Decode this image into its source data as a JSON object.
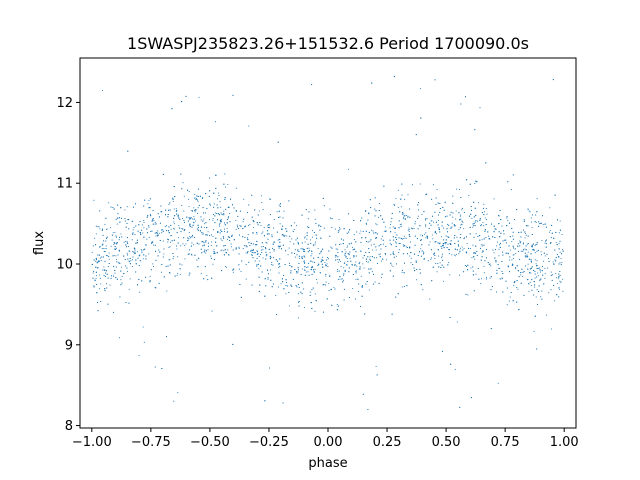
{
  "chart_data": {
    "type": "scatter",
    "title": "1SWASPJ235823.26+151532.6 Period 1700090.0s",
    "xlabel": "phase",
    "ylabel": "flux",
    "xlim": [
      -1.05,
      1.05
    ],
    "ylim": [
      7.97,
      12.55
    ],
    "xticks": [
      -1.0,
      -0.75,
      -0.5,
      -0.25,
      0.0,
      0.25,
      0.5,
      0.75,
      1.0
    ],
    "xtick_labels": [
      "−1.00",
      "−0.75",
      "−0.50",
      "−0.25",
      "0.00",
      "0.25",
      "0.50",
      "0.75",
      "1.00"
    ],
    "yticks": [
      8,
      9,
      10,
      11,
      12
    ],
    "ytick_labels": [
      "8",
      "9",
      "10",
      "11",
      "12"
    ],
    "grid": false,
    "marker_color": "#1f77b4",
    "series": [
      {
        "x_range": [
          -1.0,
          1.0
        ],
        "profile": [
          {
            "x": -1.0,
            "y": 10.05
          },
          {
            "x": -0.875,
            "y": 10.15
          },
          {
            "x": -0.75,
            "y": 10.3
          },
          {
            "x": -0.625,
            "y": 10.4
          },
          {
            "x": -0.5,
            "y": 10.45
          },
          {
            "x": -0.375,
            "y": 10.35
          },
          {
            "x": -0.25,
            "y": 10.15
          },
          {
            "x": -0.125,
            "y": 10.05
          },
          {
            "x": 0.0,
            "y": 10.0
          },
          {
            "x": 0.125,
            "y": 10.1
          },
          {
            "x": 0.25,
            "y": 10.25
          },
          {
            "x": 0.375,
            "y": 10.35
          },
          {
            "x": 0.5,
            "y": 10.45
          },
          {
            "x": 0.625,
            "y": 10.35
          },
          {
            "x": 0.75,
            "y": 10.2
          },
          {
            "x": 0.875,
            "y": 10.1
          },
          {
            "x": 1.0,
            "y": 10.05
          }
        ],
        "y_extent": [
          8.15,
          12.35
        ]
      }
    ]
  }
}
